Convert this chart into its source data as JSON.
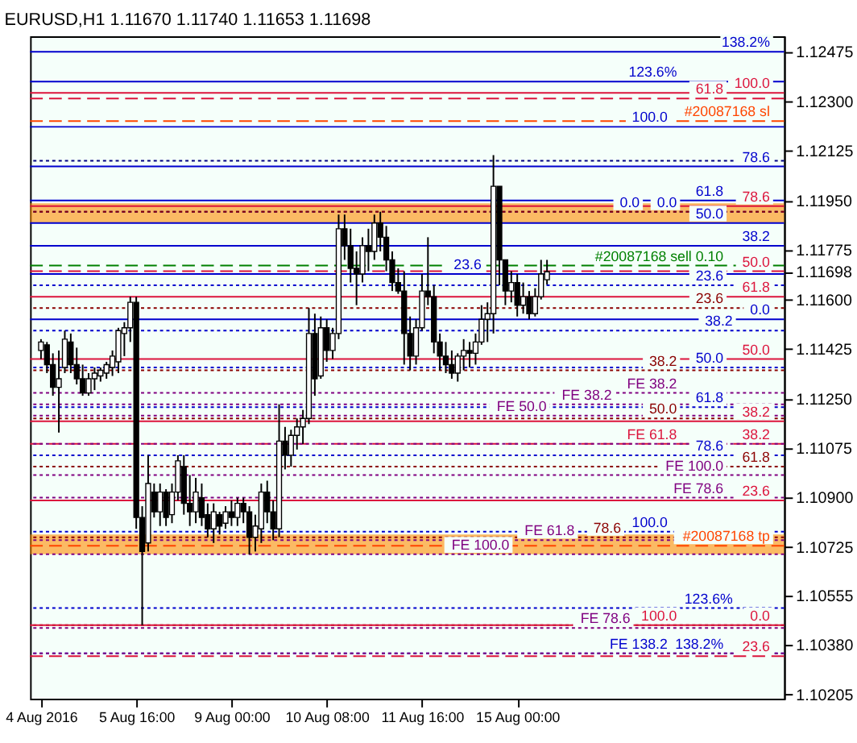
{
  "chart_data": {
    "type": "candlestick",
    "title": "EURUSD,H1  1.11670 1.11740 1.11653 1.11698",
    "color": "#000000",
    "categories": [
      "4 Aug 2016",
      null,
      null,
      null,
      null,
      null,
      null,
      null,
      null,
      null,
      null,
      null,
      null,
      null,
      null,
      null,
      "5 Aug 16:00",
      null,
      null,
      null,
      null,
      null,
      null,
      null,
      null,
      null,
      null,
      null,
      null,
      null,
      null,
      null,
      "9 Aug 00:00",
      null,
      null,
      null,
      null,
      null,
      null,
      null,
      null,
      null,
      null,
      null,
      null,
      null,
      null,
      null,
      "10 Aug 08:00",
      null,
      null,
      null,
      null,
      null,
      null,
      null,
      null,
      null,
      null,
      null,
      null,
      null,
      null,
      null,
      "11 Aug 16:00",
      null,
      null,
      null,
      null,
      null,
      null,
      null,
      null,
      null,
      null,
      null,
      null,
      null,
      null,
      null,
      "15 Aug 00:00",
      null,
      null,
      null,
      null,
      null,
      null,
      null,
      null,
      null,
      null,
      null,
      null,
      null,
      null,
      null,
      null,
      null,
      null,
      null,
      null,
      null,
      null,
      null,
      null,
      null,
      null,
      null,
      null,
      null,
      null,
      null,
      null,
      null,
      null,
      null,
      null,
      null,
      null,
      null,
      null,
      null,
      null,
      null
    ],
    "ohlc": [
      [
        1.1142,
        1.1146,
        1.1139,
        1.1145
      ],
      [
        1.1144,
        1.1145,
        1.1134,
        1.1137
      ],
      [
        1.1137,
        1.1141,
        1.1126,
        1.1129
      ],
      [
        1.1129,
        1.1142,
        1.1113,
        1.1132
      ],
      [
        1.1136,
        1.1149,
        1.1134,
        1.1146
      ],
      [
        1.1145,
        1.1148,
        1.1134,
        1.1137
      ],
      [
        1.1137,
        1.1143,
        1.113,
        1.1132
      ],
      [
        1.1132,
        1.1137,
        1.1126,
        1.1127
      ],
      [
        1.1127,
        1.1134,
        1.1126,
        1.1132
      ],
      [
        1.1132,
        1.1136,
        1.1128,
        1.1134
      ],
      [
        1.1133,
        1.1136,
        1.1131,
        1.1135
      ],
      [
        1.1134,
        1.1138,
        1.1132,
        1.1137
      ],
      [
        1.1136,
        1.1142,
        1.1133,
        1.114
      ],
      [
        1.1138,
        1.115,
        1.1134,
        1.1149
      ],
      [
        1.1148,
        1.1152,
        1.114,
        1.115
      ],
      [
        1.115,
        1.1161,
        1.1145,
        1.1159
      ],
      [
        1.1159,
        1.1161,
        1.1079,
        1.1083
      ],
      [
        1.1083,
        1.1087,
        1.1045,
        1.1071
      ],
      [
        1.1074,
        1.1105,
        1.1071,
        1.1095
      ],
      [
        1.1092,
        1.1095,
        1.1083,
        1.1085
      ],
      [
        1.1085,
        1.1095,
        1.108,
        1.1092
      ],
      [
        1.1092,
        1.1093,
        1.108,
        1.1083
      ],
      [
        1.1084,
        1.1095,
        1.1081,
        1.1092
      ],
      [
        1.1092,
        1.1105,
        1.1089,
        1.1103
      ],
      [
        1.1101,
        1.1105,
        1.1084,
        1.1088
      ],
      [
        1.1088,
        1.1098,
        1.108,
        1.1085
      ],
      [
        1.1085,
        1.1097,
        1.1081,
        1.1092
      ],
      [
        1.109,
        1.1095,
        1.108,
        1.1083
      ],
      [
        1.1084,
        1.1088,
        1.1076,
        1.1079
      ],
      [
        1.1079,
        1.1088,
        1.1074,
        1.1085
      ],
      [
        1.1084,
        1.1085,
        1.1077,
        1.108
      ],
      [
        1.1081,
        1.1087,
        1.1079,
        1.1085
      ],
      [
        1.1085,
        1.1089,
        1.108,
        1.1083
      ],
      [
        1.1083,
        1.109,
        1.108,
        1.1088
      ],
      [
        1.1088,
        1.109,
        1.1081,
        1.1085
      ],
      [
        1.1085,
        1.1087,
        1.107,
        1.1076
      ],
      [
        1.1076,
        1.1084,
        1.1071,
        1.108
      ],
      [
        1.1079,
        1.1095,
        1.1074,
        1.1092
      ],
      [
        1.1092,
        1.1096,
        1.1081,
        1.1085
      ],
      [
        1.1085,
        1.1089,
        1.1075,
        1.1079
      ],
      [
        1.1079,
        1.1123,
        1.1076,
        1.111
      ],
      [
        1.111,
        1.1115,
        1.11,
        1.1105
      ],
      [
        1.1105,
        1.1114,
        1.1101,
        1.1112
      ],
      [
        1.1112,
        1.1118,
        1.1107,
        1.1115
      ],
      [
        1.1115,
        1.1121,
        1.1109,
        1.1118
      ],
      [
        1.1118,
        1.1157,
        1.1116,
        1.1148
      ],
      [
        1.1148,
        1.1155,
        1.1126,
        1.1132
      ],
      [
        1.1133,
        1.1154,
        1.1132,
        1.115
      ],
      [
        1.115,
        1.1153,
        1.1138,
        1.1142
      ],
      [
        1.1142,
        1.115,
        1.1139,
        1.1148
      ],
      [
        1.1148,
        1.119,
        1.1146,
        1.1185
      ],
      [
        1.1185,
        1.119,
        1.1174,
        1.1179
      ],
      [
        1.1179,
        1.1185,
        1.1166,
        1.1171
      ],
      [
        1.1171,
        1.1177,
        1.1158,
        1.1169
      ],
      [
        1.1169,
        1.1182,
        1.1166,
        1.1179
      ],
      [
        1.1179,
        1.1185,
        1.117,
        1.1177
      ],
      [
        1.1177,
        1.119,
        1.1174,
        1.1187
      ],
      [
        1.1187,
        1.1191,
        1.1177,
        1.1182
      ],
      [
        1.1182,
        1.1186,
        1.117,
        1.1174
      ],
      [
        1.1174,
        1.1177,
        1.1163,
        1.1166
      ],
      [
        1.1166,
        1.1171,
        1.1162,
        1.1163
      ],
      [
        1.1163,
        1.117,
        1.1137,
        1.1148
      ],
      [
        1.1148,
        1.1154,
        1.1135,
        1.114
      ],
      [
        1.114,
        1.1153,
        1.1137,
        1.115
      ],
      [
        1.115,
        1.1169,
        1.1149,
        1.1163
      ],
      [
        1.1163,
        1.1182,
        1.1158,
        1.1161
      ],
      [
        1.1161,
        1.1165,
        1.1141,
        1.1145
      ],
      [
        1.1145,
        1.1148,
        1.1135,
        1.114
      ],
      [
        1.114,
        1.1145,
        1.1134,
        1.1137
      ],
      [
        1.1137,
        1.1142,
        1.1132,
        1.1134
      ],
      [
        1.1134,
        1.1141,
        1.1131,
        1.114
      ],
      [
        1.114,
        1.1146,
        1.1135,
        1.1142
      ],
      [
        1.1142,
        1.1145,
        1.1136,
        1.1141
      ],
      [
        1.1141,
        1.1148,
        1.1137,
        1.1145
      ],
      [
        1.1145,
        1.1158,
        1.1144,
        1.1153
      ],
      [
        1.1153,
        1.1159,
        1.1145,
        1.1155
      ],
      [
        1.1155,
        1.1211,
        1.1148,
        1.12
      ],
      [
        1.12,
        1.12,
        1.1165,
        1.1174
      ],
      [
        1.1174,
        1.1174,
        1.1158,
        1.1163
      ],
      [
        1.1163,
        1.117,
        1.1159,
        1.1166
      ],
      [
        1.1166,
        1.1169,
        1.1154,
        1.1158
      ],
      [
        1.1158,
        1.1166,
        1.1155,
        1.1161
      ],
      [
        1.1161,
        1.1163,
        1.1153,
        1.1155
      ],
      [
        1.1155,
        1.1164,
        1.1154,
        1.1161
      ],
      [
        1.1161,
        1.1174,
        1.116,
        1.1169
      ],
      [
        1.1167,
        1.1174,
        1.11653,
        1.11698
      ],
      null,
      null,
      null,
      null,
      null,
      null,
      null,
      null,
      null,
      null,
      null,
      null,
      null,
      null,
      null,
      null,
      null,
      null,
      null,
      null,
      null,
      null,
      null,
      null,
      null,
      null,
      null,
      null,
      null,
      null,
      null,
      null,
      null,
      null,
      null,
      null,
      null,
      null
    ],
    "ylim": [
      1.1019,
      1.1253
    ],
    "yticks": [
      1.10205,
      {
        "value": 1.1038,
        "label": "1.10380"
      },
      1.10555,
      1.10725,
      {
        "value": 1.109,
        "label": "1.10900"
      },
      1.11075,
      {
        "value": 1.1125,
        "label": "1.11250"
      },
      1.11425,
      {
        "value": 1.116,
        "label": "1.11600"
      },
      1.11698,
      1.11775,
      {
        "value": 1.1195,
        "label": "1.11950"
      },
      1.12125,
      {
        "value": 1.123,
        "label": "1.12300"
      },
      1.12475
    ],
    "bands": [
      {
        "axis": "y",
        "from": 1.1187,
        "to": 1.1194,
        "color": "#ff8c00"
      },
      {
        "axis": "y",
        "from": 1.107,
        "to": 1.1077,
        "color": "#ff8c00"
      }
    ],
    "ref_lines": [
      {
        "axis": "y",
        "value": 1.1233,
        "color": "#dc143c",
        "line_style": "solid"
      },
      {
        "axis": "y",
        "value": 1.1193,
        "color": "#dc143c",
        "line_style": "solid"
      },
      {
        "axis": "y",
        "value": 1.1161,
        "color": "#dc143c",
        "line_style": "solid"
      },
      {
        "axis": "y",
        "value": 1.1139,
        "color": "#dc143c",
        "line_style": "solid"
      },
      {
        "axis": "y",
        "value": 1.1117,
        "color": "#dc143c",
        "line_style": "solid"
      },
      {
        "axis": "y",
        "value": 1.1089,
        "color": "#dc143c",
        "line_style": "solid"
      },
      {
        "axis": "y",
        "value": 1.1045,
        "color": "#dc143c",
        "line_style": "solid"
      },
      {
        "axis": "y",
        "value": 1.1231,
        "color": "#dc143c",
        "line_style": "dashed"
      },
      {
        "axis": "y",
        "value": 1.117,
        "color": "#dc143c",
        "line_style": "dashed"
      },
      {
        "axis": "y",
        "value": 1.1109,
        "color": "#dc143c",
        "line_style": "dashed"
      },
      {
        "axis": "y",
        "value": 1.1034,
        "color": "#dc143c",
        "line_style": "dashed"
      },
      {
        "axis": "y",
        "value": 1.1223,
        "color": "#ff4500",
        "line_style": "dashed"
      },
      {
        "axis": "y",
        "value": 1.1172,
        "color": "#008000",
        "line_style": "dashed"
      },
      {
        "axis": "y",
        "value": 1.1073,
        "color": "#ff4500",
        "line_style": "dashed"
      },
      {
        "axis": "y",
        "value": 1.12475,
        "color": "#0000cd",
        "line_style": "solid"
      },
      {
        "axis": "y",
        "value": 1.1237,
        "color": "#0000cd",
        "line_style": "solid"
      },
      {
        "axis": "y",
        "value": 1.1221,
        "color": "#0000cd",
        "line_style": "solid"
      },
      {
        "axis": "y",
        "value": 1.1207,
        "color": "#0000cd",
        "line_style": "solid"
      },
      {
        "axis": "y",
        "value": 1.1195,
        "color": "#0000cd",
        "line_style": "solid"
      },
      {
        "axis": "y",
        "value": 1.1187,
        "color": "#0000cd",
        "line_style": "solid"
      },
      {
        "axis": "y",
        "value": 1.1179,
        "color": "#0000cd",
        "line_style": "solid"
      },
      {
        "axis": "y",
        "value": 1.1169,
        "color": "#0000cd",
        "line_style": "solid"
      },
      {
        "axis": "y",
        "value": 1.1153,
        "color": "#0000cd",
        "line_style": "solid"
      },
      {
        "axis": "y",
        "value": 1.1209,
        "color": "#000080",
        "line_style": "dotted"
      },
      {
        "axis": "y",
        "value": 1.1191,
        "color": "#0000cd",
        "line_style": "dotted"
      },
      {
        "axis": "y",
        "value": 1.1165,
        "color": "#0000cd",
        "line_style": "dotted"
      },
      {
        "axis": "y",
        "value": 1.1149,
        "color": "#0000cd",
        "line_style": "dotted"
      },
      {
        "axis": "y",
        "value": 1.1136,
        "color": "#0000cd",
        "line_style": "dotted"
      },
      {
        "axis": "y",
        "value": 1.1122,
        "color": "#0000cd",
        "line_style": "dotted"
      },
      {
        "axis": "y",
        "value": 1.1105,
        "color": "#0000cd",
        "line_style": "dotted"
      },
      {
        "axis": "y",
        "value": 1.1078,
        "color": "#0000cd",
        "line_style": "dotted"
      },
      {
        "axis": "y",
        "value": 1.1051,
        "color": "#0000cd",
        "line_style": "dotted"
      },
      {
        "axis": "y",
        "value": 1.1035,
        "color": "#0000cd",
        "line_style": "dotted"
      },
      {
        "axis": "y",
        "value": 1.1191,
        "color": "#8b0000",
        "line_style": "dotted"
      },
      {
        "axis": "y",
        "value": 1.1157,
        "color": "#8b0000",
        "line_style": "dotted"
      },
      {
        "axis": "y",
        "value": 1.1135,
        "color": "#8b0000",
        "line_style": "dotted"
      },
      {
        "axis": "y",
        "value": 1.1118,
        "color": "#8b0000",
        "line_style": "dotted"
      },
      {
        "axis": "y",
        "value": 1.1101,
        "color": "#8b0000",
        "line_style": "dotted"
      },
      {
        "axis": "y",
        "value": 1.1076,
        "color": "#8b0000",
        "line_style": "dotted"
      },
      {
        "axis": "y",
        "value": 1.1045,
        "color": "#8b0000",
        "line_style": "dotted"
      },
      {
        "axis": "y",
        "value": 1.1127,
        "color": "#800080",
        "line_style": "dotted"
      },
      {
        "axis": "y",
        "value": 1.1123,
        "color": "#800080",
        "line_style": "dotted"
      },
      {
        "axis": "y",
        "value": 1.1119,
        "color": "#800080",
        "line_style": "dotted"
      },
      {
        "axis": "y",
        "value": 1.1109,
        "color": "#800080",
        "line_style": "dotted"
      },
      {
        "axis": "y",
        "value": 1.1098,
        "color": "#800080",
        "line_style": "dotted"
      },
      {
        "axis": "y",
        "value": 1.109,
        "color": "#800080",
        "line_style": "dotted"
      },
      {
        "axis": "y",
        "value": 1.1075,
        "color": "#800080",
        "line_style": "dotted"
      },
      {
        "axis": "y",
        "value": 1.107,
        "color": "#800080",
        "line_style": "dotted"
      },
      {
        "axis": "y",
        "value": 1.1044,
        "color": "#800080",
        "line_style": "dotted"
      },
      {
        "axis": "y",
        "value": 1.1035,
        "color": "#800080",
        "line_style": "dotted"
      }
    ],
    "annotations": [
      {
        "text": "100.0",
        "y": 1.1233
      },
      {
        "text": "78.6",
        "y": 1.1193
      },
      {
        "text": "61.8",
        "y": 1.1161
      },
      {
        "text": "50.0",
        "y": 1.1139
      },
      {
        "text": "38.2",
        "y": 1.1117
      },
      {
        "text": "23.6",
        "y": 1.1089
      },
      {
        "text": "0.0",
        "y": 1.1045
      },
      {
        "text": "61.8",
        "y": 1.1231
      },
      {
        "text": "50.0",
        "y": 1.117
      },
      {
        "text": "38.2",
        "y": 1.1109
      },
      {
        "text": "23.6",
        "y": 1.1034
      },
      {
        "text": "#20087168 sl",
        "y": 1.1223
      },
      {
        "text": "#20087168 sell 0.10",
        "y": 1.1172
      },
      {
        "text": "#20087168 tp",
        "y": 1.1073
      },
      {
        "text": "138.2%",
        "y": 1.12475
      },
      {
        "text": "123.6%",
        "y": 1.1237
      },
      {
        "text": "100.0",
        "y": 1.1221
      },
      {
        "text": "78.6",
        "y": 1.1207
      },
      {
        "text": "61.8",
        "y": 1.1195
      },
      {
        "text": "50.0",
        "y": 1.1187
      },
      {
        "text": "38.2",
        "y": 1.1179
      },
      {
        "text": "23.6",
        "y": 1.1169
      },
      {
        "text": "0.0",
        "y": 1.1153
      },
      {
        "text": "0.0",
        "y": 1.1191
      },
      {
        "text": "23.6",
        "y": 1.1165
      },
      {
        "text": "38.2",
        "y": 1.1149
      },
      {
        "text": "50.0",
        "y": 1.1136
      },
      {
        "text": "61.8",
        "y": 1.1122
      },
      {
        "text": "78.6",
        "y": 1.1105
      },
      {
        "text": "100.0",
        "y": 1.1078
      },
      {
        "text": "123.6%",
        "y": 1.1051
      },
      {
        "text": "138.2%",
        "y": 1.1035
      },
      {
        "text": "0.0",
        "y": 1.1191
      },
      {
        "text": "23.6",
        "y": 1.1157
      },
      {
        "text": "38.2",
        "y": 1.1135
      },
      {
        "text": "50.0",
        "y": 1.1118
      },
      {
        "text": "61.8",
        "y": 1.1101
      },
      {
        "text": "78.6",
        "y": 1.1076
      },
      {
        "text": "100.0",
        "y": 1.1045
      },
      {
        "text": "FE 38.2",
        "y": 1.1127
      },
      {
        "text": "FE 38.2",
        "y": 1.1123
      },
      {
        "text": "FE 50.0",
        "y": 1.1119
      },
      {
        "text": "FE 61.8",
        "y": 1.1109
      },
      {
        "text": "FE 100.0",
        "y": 1.1098
      },
      {
        "text": "FE 78.6",
        "y": 1.109
      },
      {
        "text": "FE 61.8",
        "y": 1.1075
      },
      {
        "text": "FE 100.0",
        "y": 1.107
      },
      {
        "text": "FE 78.6",
        "y": 1.1044
      },
      {
        "text": "FE 138.2",
        "y": 1.1035
      }
    ]
  }
}
